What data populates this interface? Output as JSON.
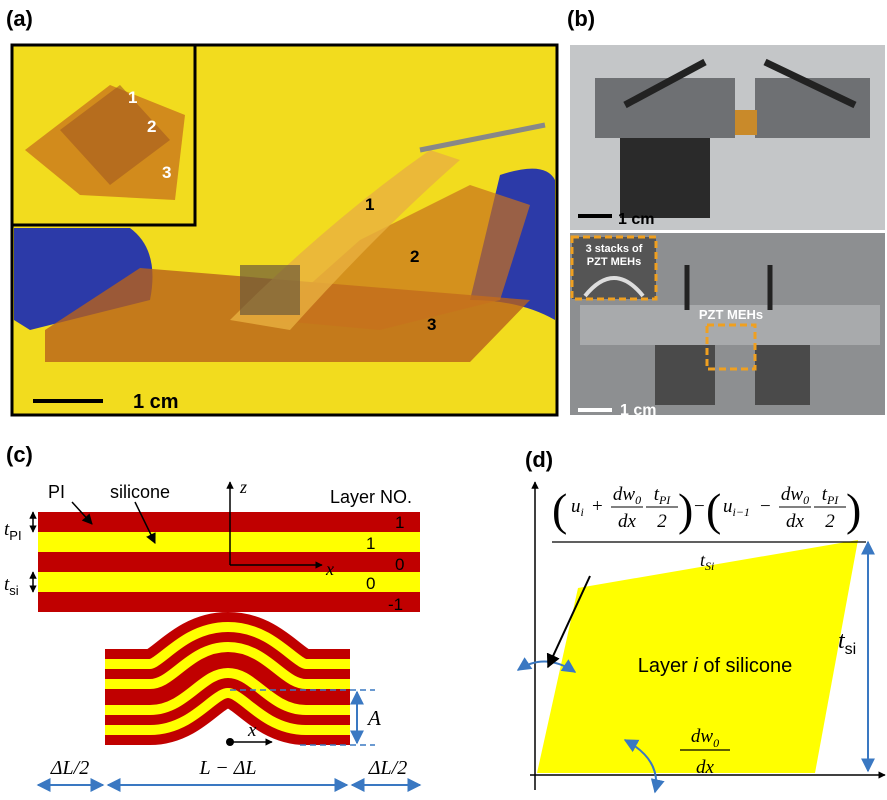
{
  "panel_a": {
    "label": "(a)",
    "inset_numbers": [
      "1",
      "2",
      "3"
    ],
    "numbers": [
      "1",
      "2",
      "3"
    ],
    "scale": "1 cm"
  },
  "panel_b": {
    "label": "(b)",
    "top_scale": "1 cm",
    "bottom_scale": "1 cm",
    "inset_lines": [
      "3 stacks of",
      "PZT MEHs"
    ],
    "callout": "PZT MEHs"
  },
  "panel_c": {
    "label": "(c)",
    "pi": "PI",
    "silicone": "silicone",
    "z": "z",
    "x": "x",
    "layer_header": "Layer NO.",
    "layer_numbers": [
      "1",
      "1",
      "0",
      "0",
      "-1"
    ],
    "t": "t",
    "t_pi_sub": "PI",
    "t_si_sub": "si",
    "amplitude": "A",
    "x_lower": "x",
    "half_delta": "ΔL/2",
    "middle": "L − ΔL"
  },
  "panel_d": {
    "label": "(d)",
    "eq": {
      "open": "(",
      "close": ")",
      "u": "u",
      "i": "i",
      "i_minus_1": "i−1",
      "plus": "+",
      "minus": "−",
      "dw": "dw",
      "zero": "0",
      "dx": "dx",
      "t": "t",
      "pi": "PI",
      "two": "2",
      "den_t": "t",
      "den_sub": "Si"
    },
    "layer_before": "Layer ",
    "layer_index": "i",
    "layer_after": " of silicone",
    "t": "t",
    "t_sub": "si",
    "dw": "dw",
    "dw_sub": "0",
    "dx": "dx"
  }
}
